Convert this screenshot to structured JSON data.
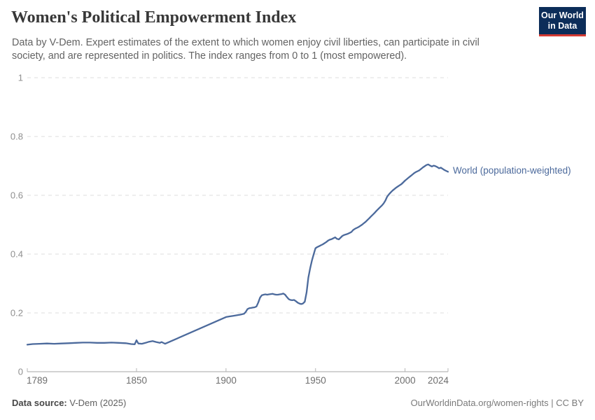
{
  "header": {
    "title": "Women's Political Empowerment Index",
    "subtitle": "Data by V-Dem. Expert estimates of the extent to which women enjoy civil liberties, can participate in civil society, and are represented in politics. The index ranges from 0 to 1 (most empowered)."
  },
  "logo": {
    "line1": "Our World",
    "line2": "in Data",
    "bg_color": "#0c2d59",
    "accent_color": "#d43a33"
  },
  "chart_data": {
    "type": "line",
    "title": "Women's Political Empowerment Index",
    "xlabel": "",
    "ylabel": "",
    "xlim": [
      1789,
      2024
    ],
    "ylim": [
      0,
      1
    ],
    "x_ticks": [
      1789,
      1850,
      1900,
      1950,
      2000,
      2024
    ],
    "y_ticks": [
      0,
      0.2,
      0.4,
      0.6,
      0.8,
      1
    ],
    "grid": "horizontal-dashed",
    "legend_position": "end-of-line",
    "series": [
      {
        "name": "World (population-weighted)",
        "color": "#4c6a9c",
        "points": [
          [
            1789,
            0.092
          ],
          [
            1792,
            0.094
          ],
          [
            1796,
            0.095
          ],
          [
            1800,
            0.096
          ],
          [
            1804,
            0.095
          ],
          [
            1808,
            0.096
          ],
          [
            1812,
            0.097
          ],
          [
            1816,
            0.098
          ],
          [
            1820,
            0.099
          ],
          [
            1824,
            0.099
          ],
          [
            1828,
            0.098
          ],
          [
            1832,
            0.098
          ],
          [
            1836,
            0.099
          ],
          [
            1840,
            0.098
          ],
          [
            1844,
            0.097
          ],
          [
            1847,
            0.094
          ],
          [
            1849,
            0.093
          ],
          [
            1850,
            0.107
          ],
          [
            1851,
            0.096
          ],
          [
            1853,
            0.095
          ],
          [
            1855,
            0.098
          ],
          [
            1857,
            0.102
          ],
          [
            1859,
            0.104
          ],
          [
            1861,
            0.101
          ],
          [
            1863,
            0.098
          ],
          [
            1864,
            0.101
          ],
          [
            1866,
            0.095
          ],
          [
            1900,
            0.186
          ],
          [
            1902,
            0.188
          ],
          [
            1904,
            0.19
          ],
          [
            1906,
            0.192
          ],
          [
            1908,
            0.194
          ],
          [
            1910,
            0.197
          ],
          [
            1911,
            0.203
          ],
          [
            1912,
            0.213
          ],
          [
            1913,
            0.216
          ],
          [
            1914,
            0.217
          ],
          [
            1915,
            0.218
          ],
          [
            1916,
            0.219
          ],
          [
            1917,
            0.222
          ],
          [
            1918,
            0.235
          ],
          [
            1919,
            0.252
          ],
          [
            1920,
            0.26
          ],
          [
            1921,
            0.262
          ],
          [
            1922,
            0.263
          ],
          [
            1923,
            0.262
          ],
          [
            1924,
            0.263
          ],
          [
            1925,
            0.264
          ],
          [
            1926,
            0.265
          ],
          [
            1927,
            0.263
          ],
          [
            1928,
            0.262
          ],
          [
            1929,
            0.262
          ],
          [
            1930,
            0.263
          ],
          [
            1931,
            0.264
          ],
          [
            1932,
            0.266
          ],
          [
            1933,
            0.262
          ],
          [
            1934,
            0.254
          ],
          [
            1935,
            0.247
          ],
          [
            1936,
            0.244
          ],
          [
            1937,
            0.243
          ],
          [
            1938,
            0.244
          ],
          [
            1939,
            0.24
          ],
          [
            1940,
            0.235
          ],
          [
            1941,
            0.232
          ],
          [
            1942,
            0.23
          ],
          [
            1943,
            0.232
          ],
          [
            1944,
            0.238
          ],
          [
            1945,
            0.27
          ],
          [
            1946,
            0.32
          ],
          [
            1947,
            0.352
          ],
          [
            1948,
            0.378
          ],
          [
            1949,
            0.4
          ],
          [
            1950,
            0.42
          ],
          [
            1951,
            0.424
          ],
          [
            1952,
            0.427
          ],
          [
            1953,
            0.43
          ],
          [
            1954,
            0.433
          ],
          [
            1955,
            0.437
          ],
          [
            1956,
            0.441
          ],
          [
            1957,
            0.446
          ],
          [
            1958,
            0.449
          ],
          [
            1959,
            0.451
          ],
          [
            1960,
            0.454
          ],
          [
            1961,
            0.457
          ],
          [
            1962,
            0.452
          ],
          [
            1963,
            0.45
          ],
          [
            1964,
            0.456
          ],
          [
            1965,
            0.462
          ],
          [
            1966,
            0.465
          ],
          [
            1967,
            0.467
          ],
          [
            1968,
            0.469
          ],
          [
            1969,
            0.472
          ],
          [
            1970,
            0.475
          ],
          [
            1971,
            0.482
          ],
          [
            1972,
            0.486
          ],
          [
            1973,
            0.489
          ],
          [
            1974,
            0.492
          ],
          [
            1975,
            0.496
          ],
          [
            1976,
            0.5
          ],
          [
            1977,
            0.505
          ],
          [
            1978,
            0.51
          ],
          [
            1979,
            0.516
          ],
          [
            1980,
            0.522
          ],
          [
            1981,
            0.528
          ],
          [
            1982,
            0.534
          ],
          [
            1983,
            0.54
          ],
          [
            1984,
            0.547
          ],
          [
            1985,
            0.553
          ],
          [
            1986,
            0.559
          ],
          [
            1987,
            0.565
          ],
          [
            1988,
            0.572
          ],
          [
            1989,
            0.582
          ],
          [
            1990,
            0.595
          ],
          [
            1991,
            0.603
          ],
          [
            1992,
            0.61
          ],
          [
            1993,
            0.616
          ],
          [
            1994,
            0.621
          ],
          [
            1995,
            0.626
          ],
          [
            1996,
            0.63
          ],
          [
            1997,
            0.634
          ],
          [
            1998,
            0.638
          ],
          [
            1999,
            0.644
          ],
          [
            2000,
            0.65
          ],
          [
            2001,
            0.655
          ],
          [
            2002,
            0.66
          ],
          [
            2003,
            0.665
          ],
          [
            2004,
            0.67
          ],
          [
            2005,
            0.675
          ],
          [
            2006,
            0.679
          ],
          [
            2007,
            0.682
          ],
          [
            2008,
            0.685
          ],
          [
            2009,
            0.69
          ],
          [
            2010,
            0.695
          ],
          [
            2011,
            0.699
          ],
          [
            2012,
            0.703
          ],
          [
            2013,
            0.705
          ],
          [
            2014,
            0.701
          ],
          [
            2015,
            0.698
          ],
          [
            2016,
            0.701
          ],
          [
            2017,
            0.699
          ],
          [
            2018,
            0.696
          ],
          [
            2019,
            0.692
          ],
          [
            2020,
            0.694
          ],
          [
            2021,
            0.69
          ],
          [
            2022,
            0.686
          ],
          [
            2023,
            0.683
          ],
          [
            2024,
            0.68
          ]
        ]
      }
    ]
  },
  "footer": {
    "source_label": "Data source:",
    "source_value": "V-Dem (2025)",
    "credit": "OurWorldinData.org/women-rights | CC BY"
  }
}
